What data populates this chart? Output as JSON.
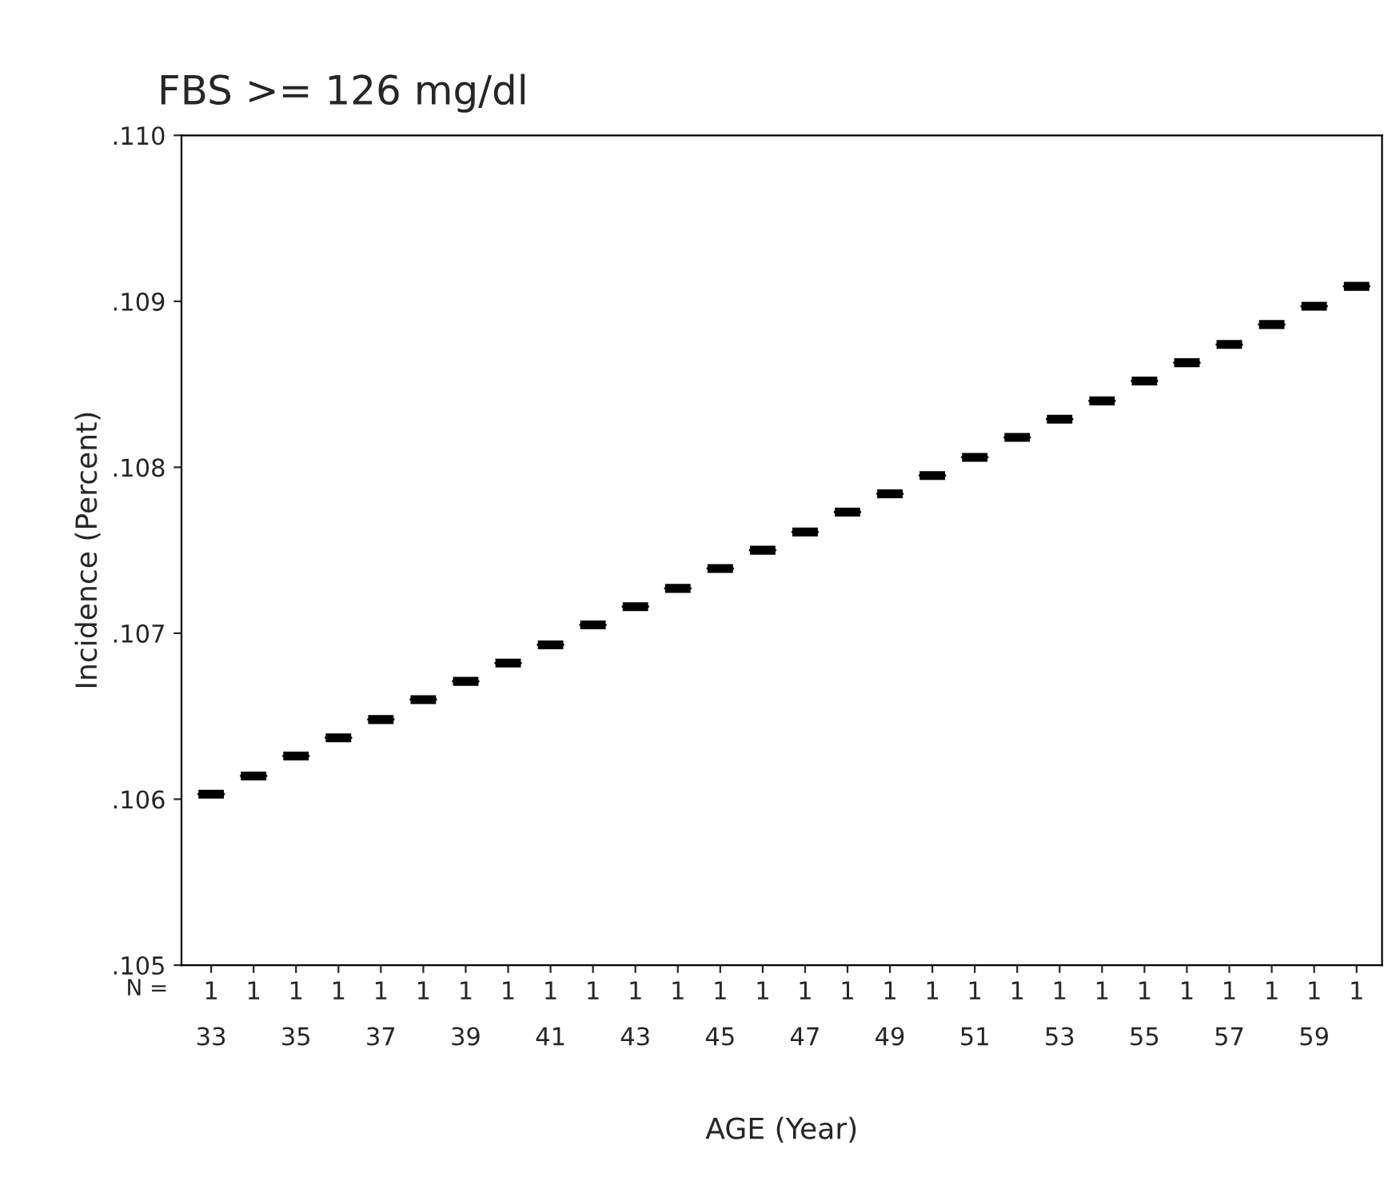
{
  "chart_data": {
    "type": "box",
    "title": "FBS >= 126 mg/dl",
    "xlabel": "AGE (Year)",
    "ylabel": "Incidence (Percent)",
    "annotations": [
      "N ="
    ],
    "categories": [
      "1\n33",
      "1",
      "1\n35",
      "1",
      "1\n37",
      "1",
      "1\n39",
      "1",
      "1\n41",
      "1",
      "1\n43",
      "1",
      "1\n45",
      "1",
      "1\n47",
      "1",
      "1\n49",
      "1",
      "1\n51",
      "1",
      "1\n53",
      "1",
      "1\n55",
      "1",
      "1\n57",
      "1",
      "1\n59",
      "1"
    ],
    "boxes": [
      {
        "low": 0.10603,
        "q1": 0.10603,
        "median": 0.10603,
        "q3": 0.10603,
        "high": 0.10603
      },
      {
        "low": 0.10614,
        "q1": 0.10614,
        "median": 0.10614,
        "q3": 0.10614,
        "high": 0.10614
      },
      {
        "low": 0.10626,
        "q1": 0.10626,
        "median": 0.10626,
        "q3": 0.10626,
        "high": 0.10626
      },
      {
        "low": 0.10637,
        "q1": 0.10637,
        "median": 0.10637,
        "q3": 0.10637,
        "high": 0.10637
      },
      {
        "low": 0.10648,
        "q1": 0.10648,
        "median": 0.10648,
        "q3": 0.10648,
        "high": 0.10648
      },
      {
        "low": 0.1066,
        "q1": 0.1066,
        "median": 0.1066,
        "q3": 0.1066,
        "high": 0.1066
      },
      {
        "low": 0.10671,
        "q1": 0.10671,
        "median": 0.10671,
        "q3": 0.10671,
        "high": 0.10671
      },
      {
        "low": 0.10682,
        "q1": 0.10682,
        "median": 0.10682,
        "q3": 0.10682,
        "high": 0.10682
      },
      {
        "low": 0.10693,
        "q1": 0.10693,
        "median": 0.10693,
        "q3": 0.10693,
        "high": 0.10693
      },
      {
        "low": 0.10705,
        "q1": 0.10705,
        "median": 0.10705,
        "q3": 0.10705,
        "high": 0.10705
      },
      {
        "low": 0.10716,
        "q1": 0.10716,
        "median": 0.10716,
        "q3": 0.10716,
        "high": 0.10716
      },
      {
        "low": 0.10727,
        "q1": 0.10727,
        "median": 0.10727,
        "q3": 0.10727,
        "high": 0.10727
      },
      {
        "low": 0.10739,
        "q1": 0.10739,
        "median": 0.10739,
        "q3": 0.10739,
        "high": 0.10739
      },
      {
        "low": 0.1075,
        "q1": 0.1075,
        "median": 0.1075,
        "q3": 0.1075,
        "high": 0.1075
      },
      {
        "low": 0.10761,
        "q1": 0.10761,
        "median": 0.10761,
        "q3": 0.10761,
        "high": 0.10761
      },
      {
        "low": 0.10773,
        "q1": 0.10773,
        "median": 0.10773,
        "q3": 0.10773,
        "high": 0.10773
      },
      {
        "low": 0.10784,
        "q1": 0.10784,
        "median": 0.10784,
        "q3": 0.10784,
        "high": 0.10784
      },
      {
        "low": 0.10795,
        "q1": 0.10795,
        "median": 0.10795,
        "q3": 0.10795,
        "high": 0.10795
      },
      {
        "low": 0.10806,
        "q1": 0.10806,
        "median": 0.10806,
        "q3": 0.10806,
        "high": 0.10806
      },
      {
        "low": 0.10818,
        "q1": 0.10818,
        "median": 0.10818,
        "q3": 0.10818,
        "high": 0.10818
      },
      {
        "low": 0.10829,
        "q1": 0.10829,
        "median": 0.10829,
        "q3": 0.10829,
        "high": 0.10829
      },
      {
        "low": 0.1084,
        "q1": 0.1084,
        "median": 0.1084,
        "q3": 0.1084,
        "high": 0.1084
      },
      {
        "low": 0.10852,
        "q1": 0.10852,
        "median": 0.10852,
        "q3": 0.10852,
        "high": 0.10852
      },
      {
        "low": 0.10863,
        "q1": 0.10863,
        "median": 0.10863,
        "q3": 0.10863,
        "high": 0.10863
      },
      {
        "low": 0.10874,
        "q1": 0.10874,
        "median": 0.10874,
        "q3": 0.10874,
        "high": 0.10874
      },
      {
        "low": 0.10886,
        "q1": 0.10886,
        "median": 0.10886,
        "q3": 0.10886,
        "high": 0.10886
      },
      {
        "low": 0.10897,
        "q1": 0.10897,
        "median": 0.10897,
        "q3": 0.10897,
        "high": 0.10897
      },
      {
        "low": 0.10909,
        "q1": 0.10909,
        "median": 0.10909,
        "q3": 0.10909,
        "high": 0.10909
      }
    ],
    "color": "#000000",
    "ylim": [
      0.105,
      0.11
    ],
    "yticks": [
      {
        "value": 0.105,
        "label": ".105"
      },
      {
        "value": 0.106,
        "label": ".106"
      },
      {
        "value": 0.107,
        "label": ".107"
      },
      {
        "value": 0.108,
        "label": ".108"
      },
      {
        "value": 0.109,
        "label": ".109"
      },
      {
        "value": 0.11,
        "label": ".110"
      }
    ],
    "grid": false
  }
}
